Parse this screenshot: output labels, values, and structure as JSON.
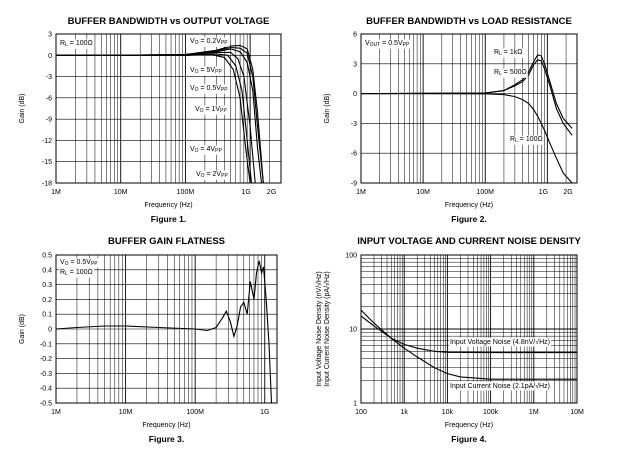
{
  "chart_data": [
    {
      "type": "line",
      "title": "BUFFER BANDWIDTH vs OUTPUT VOLTAGE",
      "figure": "Figure 1.",
      "xlabel": "Frequency (Hz)",
      "ylabel": "Gain (dB)",
      "xscale": "log",
      "xlim": [
        1000000,
        3000000000
      ],
      "ylim": [
        -18,
        3
      ],
      "yticks": [
        "3",
        "0",
        "-3",
        "-6",
        "-9",
        "-12",
        "-15",
        "-18"
      ],
      "xtick_labels": [
        "1M",
        "10M",
        "100M",
        "1G",
        "2G"
      ],
      "grid": true,
      "annotations": [
        {
          "main": "R",
          "sub": "L",
          "rest": " = 100Ω"
        },
        {
          "main": "V",
          "sub": "O",
          "rest": " = 0.2V",
          "sub2": "PP"
        },
        {
          "main": "V",
          "sub": "O",
          "rest": " = 5V",
          "sub2": "PP"
        },
        {
          "main": "V",
          "sub": "O",
          "rest": " = 0.5V",
          "sub2": "PP"
        },
        {
          "main": "V",
          "sub": "O",
          "rest": " = 1V",
          "sub2": "PP"
        },
        {
          "main": "V",
          "sub": "O",
          "rest": " = 4V",
          "sub2": "PP"
        },
        {
          "main": "V",
          "sub": "O",
          "rest": " = 2V",
          "sub2": "PP"
        }
      ],
      "series": [
        {
          "name": "VO = 0.2VPP",
          "x": [
            1000000.0,
            10000000.0,
            100000000.0,
            300000000.0,
            500000000.0,
            700000000.0,
            900000000.0,
            1100000000.0,
            1300000000.0,
            1600000000.0
          ],
          "y": [
            0,
            0,
            0.1,
            0.7,
            1.3,
            1.4,
            0.9,
            -2,
            -8,
            -18
          ]
        },
        {
          "name": "VO = 0.5VPP",
          "x": [
            1000000.0,
            10000000.0,
            100000000.0,
            300000000.0,
            500000000.0,
            700000000.0,
            900000000.0,
            1100000000.0,
            1300000000.0,
            1600000000.0
          ],
          "y": [
            0,
            0,
            0.1,
            0.6,
            1.1,
            1.0,
            0.3,
            -3,
            -10,
            -18
          ]
        },
        {
          "name": "VO = 1VPP",
          "x": [
            1000000.0,
            10000000.0,
            100000000.0,
            300000000.0,
            500000000.0,
            700000000.0,
            900000000.0,
            1100000000.0,
            1300000000.0,
            1500000000.0
          ],
          "y": [
            0,
            0,
            0.1,
            0.5,
            0.9,
            0.5,
            -1,
            -5,
            -13,
            -18
          ]
        },
        {
          "name": "VO = 2VPP",
          "x": [
            1000000.0,
            10000000.0,
            100000000.0,
            300000000.0,
            500000000.0,
            650000000.0,
            800000000.0,
            1000000000.0,
            1200000000.0
          ],
          "y": [
            0,
            0,
            0.05,
            0.4,
            0.4,
            -0.5,
            -3,
            -10,
            -18
          ]
        },
        {
          "name": "VO = 4VPP",
          "x": [
            1000000.0,
            10000000.0,
            100000000.0,
            300000000.0,
            450000000.0,
            600000000.0,
            750000000.0,
            900000000.0,
            1050000000.0
          ],
          "y": [
            0,
            0,
            0,
            0.2,
            0,
            -1.5,
            -5,
            -12,
            -18
          ]
        },
        {
          "name": "VO = 5VPP",
          "x": [
            1000000.0,
            10000000.0,
            100000000.0,
            250000000.0,
            400000000.0,
            550000000.0,
            700000000.0,
            850000000.0,
            1000000000.0
          ],
          "y": [
            0,
            0,
            0,
            0.1,
            -0.3,
            -2,
            -6,
            -13,
            -18
          ]
        }
      ]
    },
    {
      "type": "line",
      "title": "BUFFER BANDWIDTH vs LOAD RESISTANCE",
      "figure": "Figure 2.",
      "xlabel": "Frequency (Hz)",
      "ylabel": "Gain (dB)",
      "xscale": "log",
      "xlim": [
        1000000,
        3000000000
      ],
      "ylim": [
        -9,
        6
      ],
      "yticks": [
        "6",
        "3",
        "0",
        "-3",
        "-6",
        "-9"
      ],
      "xtick_labels": [
        "1M",
        "10M",
        "100M",
        "1G",
        "2G"
      ],
      "grid": true,
      "annotations": [
        {
          "main": "V",
          "sub": "OUT",
          "rest": " = 0.5V",
          "sub2": "PP"
        },
        {
          "main": "R",
          "sub": "L",
          "rest": " = 1kΩ"
        },
        {
          "main": "R",
          "sub": "L",
          "rest": " = 500Ω"
        },
        {
          "main": "R",
          "sub": "L",
          "rest": " = 100Ω"
        }
      ],
      "series": [
        {
          "name": "RL = 1kΩ",
          "x": [
            1000000.0,
            100000000.0,
            200000000.0,
            300000000.0,
            400000000.0,
            500000000.0,
            600000000.0,
            700000000.0,
            800000000.0,
            900000000.0,
            1100000000.0,
            1400000000.0,
            1800000000.0,
            2500000000.0
          ],
          "y": [
            0,
            0.05,
            0.3,
            0.9,
            1.4,
            2.2,
            3.2,
            3.9,
            3.8,
            3.0,
            1.2,
            -1.0,
            -2.5,
            -3.5
          ]
        },
        {
          "name": "RL = 500Ω",
          "x": [
            1000000.0,
            100000000.0,
            200000000.0,
            300000000.0,
            400000000.0,
            500000000.0,
            600000000.0,
            700000000.0,
            800000000.0,
            900000000.0,
            1100000000.0,
            1400000000.0,
            1800000000.0,
            2500000000.0
          ],
          "y": [
            0,
            0.05,
            0.3,
            0.8,
            1.2,
            1.9,
            2.9,
            3.4,
            3.3,
            2.5,
            0.8,
            -1.5,
            -3.0,
            -4.2
          ]
        },
        {
          "name": "RL = 100Ω",
          "x": [
            1000000.0,
            100000000.0,
            200000000.0,
            300000000.0,
            400000000.0,
            500000000.0,
            600000000.0,
            700000000.0,
            800000000.0,
            900000000.0,
            1100000000.0,
            1400000000.0,
            1800000000.0,
            2500000000.0
          ],
          "y": [
            0,
            -0.02,
            -0.1,
            -0.3,
            -0.6,
            -1.0,
            -1.6,
            -2.3,
            -3.0,
            -3.7,
            -5.0,
            -6.5,
            -8.0,
            -9
          ]
        }
      ]
    },
    {
      "type": "line",
      "title": "BUFFER GAIN FLATNESS",
      "figure": "Figure 3.",
      "xlabel": "Frequency (Hz)",
      "ylabel": "Gain (dB)",
      "xscale": "log",
      "xlim": [
        1000000,
        1500000000
      ],
      "ylim": [
        -0.5,
        0.5
      ],
      "yticks": [
        "0.5",
        "0.4",
        "0.3",
        "0.2",
        "0.1",
        "0",
        "-0.1",
        "-0.2",
        "-0.3",
        "-0.4",
        "-0.5"
      ],
      "xtick_labels": [
        "1M",
        "10M",
        "100M",
        "1G"
      ],
      "grid": true,
      "annotations": [
        {
          "main": "V",
          "sub": "O",
          "rest": " = 0.5V",
          "sub2": "PP"
        },
        {
          "main": "R",
          "sub": "L",
          "rest": " = 100Ω"
        }
      ],
      "series": [
        {
          "name": "gain flatness",
          "x": [
            1000000.0,
            2000000.0,
            5000000.0,
            10000000.0,
            30000000.0,
            100000000.0,
            150000000.0,
            200000000.0,
            250000000.0,
            280000000.0,
            320000000.0,
            360000000.0,
            400000000.0,
            450000000.0,
            500000000.0,
            560000000.0,
            620000000.0,
            700000000.0,
            760000000.0,
            830000000.0,
            900000000.0,
            960000000.0,
            1050000000.0,
            1150000000.0,
            1250000000.0
          ],
          "y": [
            0,
            0.01,
            0.02,
            0.02,
            0.01,
            0,
            -0.01,
            0.01,
            0.08,
            0.12,
            0.05,
            -0.05,
            0.02,
            0.15,
            0.18,
            0.1,
            0.32,
            0.2,
            0.38,
            0.46,
            0.38,
            0.42,
            0.2,
            -0.1,
            -0.5
          ]
        }
      ]
    },
    {
      "type": "line",
      "title": "INPUT VOLTAGE AND CURRENT NOISE DENSITY",
      "figure": "Figure 4.",
      "xlabel": "Frequency (Hz)",
      "ylabel_lines": [
        "Input Voltage Noise Density (nV/√Hz)",
        "Input Current Noise Density (pA/√Hz)"
      ],
      "xscale": "log",
      "yscale": "log",
      "xlim": [
        100,
        10000000
      ],
      "ylim": [
        1,
        100
      ],
      "yticks": [
        "100",
        "10",
        "1"
      ],
      "xtick_labels": [
        "100",
        "1k",
        "10k",
        "100k",
        "1M",
        "10M"
      ],
      "grid": true,
      "annotations": [
        {
          "main": "Input Voltage Noise (4.8nV/√Hz)"
        },
        {
          "main": "Input Current Noise (2.1pA/√Hz)"
        }
      ],
      "series": [
        {
          "name": "Input Voltage Noise",
          "x": [
            100,
            200,
            500,
            1000,
            2000,
            5000,
            10000,
            100000,
            10000000
          ],
          "y": [
            15,
            11,
            7.5,
            6.2,
            5.5,
            5.0,
            4.85,
            4.8,
            4.8
          ]
        },
        {
          "name": "Input Current Noise",
          "x": [
            100,
            200,
            500,
            1000,
            2000,
            5000,
            10000,
            20000,
            100000,
            10000000
          ],
          "y": [
            18,
            12,
            7.5,
            5.5,
            4.2,
            3.0,
            2.5,
            2.25,
            2.1,
            2.1
          ]
        }
      ]
    }
  ]
}
